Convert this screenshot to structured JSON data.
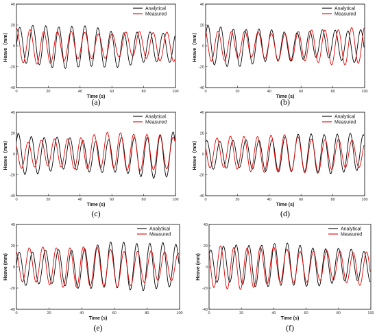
{
  "colors": {
    "analytical": "#000000",
    "measured": "#e00000"
  },
  "chart_data": [
    {
      "type": "line",
      "caption": "(a)",
      "xlabel": "Time (s)",
      "ylabel": "Heave（mm）",
      "xlim": [
        0,
        100
      ],
      "ylim": [
        -40,
        40
      ],
      "xticks": [
        "0",
        "20",
        "40",
        "60",
        "80",
        "100"
      ],
      "yticks": [
        "-40",
        "-20",
        "0",
        "20",
        "40"
      ],
      "legend": "top-right",
      "series": [
        {
          "name": "Analytical",
          "color": "#000000",
          "amplitude": 17,
          "period_s": 8.2,
          "phase": 0.0,
          "trend": -1
        },
        {
          "name": "Measured",
          "color": "#e00000",
          "amplitude": 14,
          "period_s": 8.6,
          "phase": 1.6,
          "trend": 0
        }
      ]
    },
    {
      "type": "line",
      "caption": "(b)",
      "xlabel": "Time (s)",
      "ylabel": "Heave（mm）",
      "xlim": [
        0,
        100
      ],
      "ylim": [
        -40,
        40
      ],
      "xticks": [
        "0",
        "20",
        "40",
        "60",
        "80",
        "100"
      ],
      "yticks": [
        "-40",
        "-20",
        "0",
        "20",
        "40"
      ],
      "legend": "top-right",
      "series": [
        {
          "name": "Analytical",
          "color": "#000000",
          "amplitude": 16,
          "period_s": 8.0,
          "phase": 0.4,
          "trend": 0
        },
        {
          "name": "Measured",
          "color": "#e00000",
          "amplitude": 15,
          "period_s": 8.4,
          "phase": 2.0,
          "trend": 0
        }
      ]
    },
    {
      "type": "line",
      "caption": "(c)",
      "xlabel": "Time (s)",
      "ylabel": "Heave（mm）",
      "xlim": [
        0,
        100
      ],
      "ylim": [
        -40,
        40
      ],
      "xticks": [
        "0",
        "20",
        "40",
        "60",
        "80",
        "100"
      ],
      "yticks": [
        "-40",
        "-20",
        "0",
        "20",
        "40"
      ],
      "legend": "top-right",
      "series": [
        {
          "name": "Analytical",
          "color": "#000000",
          "amplitude": 18,
          "period_s": 8.1,
          "phase": 0.6,
          "trend": -1
        },
        {
          "name": "Measured",
          "color": "#e00000",
          "amplitude": 15,
          "period_s": 8.3,
          "phase": 2.3,
          "trend": 1
        }
      ]
    },
    {
      "type": "line",
      "caption": "(d)",
      "xlabel": "Time (s)",
      "ylabel": "Heave（mm）",
      "xlim": [
        0,
        100
      ],
      "ylim": [
        -40,
        40
      ],
      "xticks": [
        "0",
        "20",
        "40",
        "60",
        "80",
        "100"
      ],
      "yticks": [
        "-40",
        "-20",
        "0",
        "20",
        "40"
      ],
      "legend": "top-right",
      "series": [
        {
          "name": "Analytical",
          "color": "#000000",
          "amplitude": 16,
          "period_s": 8.2,
          "phase": 1.0,
          "trend": 0
        },
        {
          "name": "Measured",
          "color": "#e00000",
          "amplitude": 15,
          "period_s": 8.5,
          "phase": 2.6,
          "trend": 0
        }
      ]
    },
    {
      "type": "line",
      "caption": "(e)",
      "xlabel": "Time (s)",
      "ylabel": "Heave (mm)",
      "xlim": [
        0,
        100
      ],
      "ylim": [
        -40,
        40
      ],
      "xticks": [
        "0",
        "20",
        "40",
        "60",
        "80",
        "100"
      ],
      "yticks": [
        "-40",
        "-20",
        "0",
        "20",
        "40"
      ],
      "legend": "top-right",
      "series": [
        {
          "name": "Analytical",
          "color": "#000000",
          "amplitude": 19,
          "period_s": 8.0,
          "phase": 0.2,
          "trend": 0
        },
        {
          "name": "Measured",
          "color": "#e00000",
          "amplitude": 16,
          "period_s": 8.3,
          "phase": 1.9,
          "trend": 0
        }
      ]
    },
    {
      "type": "line",
      "caption": "(f)",
      "xlabel": "Time (s)",
      "ylabel": "Heave (mm)",
      "xlim": [
        0,
        100
      ],
      "ylim": [
        -40,
        40
      ],
      "xticks": [
        "0",
        "20",
        "40",
        "60",
        "80",
        "100"
      ],
      "yticks": [
        "-40",
        "-20",
        "0",
        "20",
        "40"
      ],
      "legend": "top-right",
      "series": [
        {
          "name": "Analytical",
          "color": "#000000",
          "amplitude": 17,
          "period_s": 7.9,
          "phase": 0.8,
          "trend": 1
        },
        {
          "name": "Measured",
          "color": "#e00000",
          "amplitude": 17,
          "period_s": 8.2,
          "phase": 2.4,
          "trend": 0
        }
      ]
    }
  ]
}
